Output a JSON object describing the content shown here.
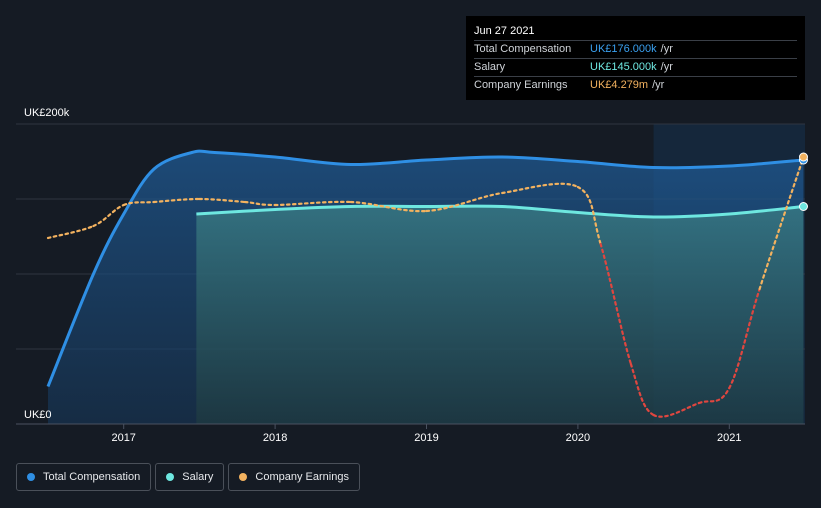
{
  "tooltip": {
    "date": "Jun 27 2021",
    "rows": [
      {
        "label": "Total Compensation",
        "value": "UK£176.000k",
        "unit": "/yr"
      },
      {
        "label": "Salary",
        "value": "UK£145.000k",
        "unit": "/yr"
      },
      {
        "label": "Company Earnings",
        "value": "UK£4.279m",
        "unit": "/yr"
      }
    ]
  },
  "legend": [
    "Total Compensation",
    "Salary",
    "Company Earnings"
  ],
  "colors": {
    "total_compensation": "#2f8fe4",
    "salary": "#6ee7e0",
    "company_earnings": "#f3b25f",
    "earnings_negative": "#e0463f",
    "background": "#151b24"
  },
  "chart_data": {
    "type": "area",
    "y_ticks": [
      "UK£0",
      "UK£200k"
    ],
    "ylim_compensation": [
      0,
      200
    ],
    "x_ticks": [
      "2017",
      "2018",
      "2019",
      "2020",
      "2021"
    ],
    "xlim": [
      2016.5,
      2021.5
    ],
    "series": [
      {
        "name": "Total Compensation",
        "unit": "UK£k",
        "x": [
          2016.5,
          2016.8,
          2017.0,
          2017.2,
          2017.45,
          2017.6,
          2018.0,
          2018.5,
          2019.0,
          2019.5,
          2020.0,
          2020.5,
          2021.0,
          2021.49
        ],
        "y": [
          25,
          100,
          140,
          170,
          181,
          181,
          178,
          173,
          176,
          178,
          175,
          171,
          172,
          176
        ]
      },
      {
        "name": "Salary",
        "unit": "UK£k",
        "x": [
          2017.48,
          2018.0,
          2018.5,
          2019.0,
          2019.5,
          2020.0,
          2020.5,
          2021.0,
          2021.49
        ],
        "y": [
          140,
          143,
          145,
          145,
          145,
          141,
          138,
          140,
          145
        ]
      },
      {
        "name": "Company Earnings",
        "unit": "relative",
        "x": [
          2016.5,
          2016.8,
          2017.0,
          2017.2,
          2017.5,
          2017.8,
          2018.0,
          2018.5,
          2019.0,
          2019.5,
          2020.0,
          2020.15,
          2020.35,
          2020.5,
          2020.8,
          2021.0,
          2021.2,
          2021.49
        ],
        "y": [
          0.62,
          0.66,
          0.73,
          0.74,
          0.75,
          0.74,
          0.73,
          0.74,
          0.71,
          0.77,
          0.79,
          0.6,
          0.2,
          0.03,
          0.07,
          0.12,
          0.45,
          0.89
        ]
      }
    ],
    "highlight_region": [
      2020.5,
      2021.5
    ]
  }
}
